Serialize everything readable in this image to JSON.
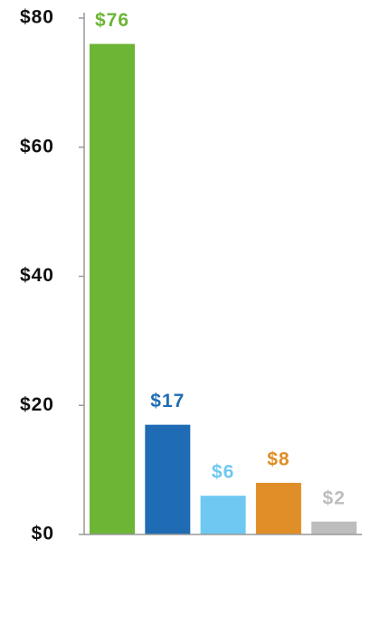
{
  "chart_data": {
    "type": "bar",
    "categories": [
      null,
      null,
      null,
      null,
      null
    ],
    "values": [
      76,
      17,
      6,
      8,
      2
    ],
    "value_labels": [
      "$76",
      "$17",
      "$6",
      "$8",
      "$2"
    ],
    "colors": [
      "#6cb535",
      "#1f6cb4",
      "#6ec8f2",
      "#e08e27",
      "#bdbdbd"
    ],
    "ylim": [
      0,
      80
    ],
    "yticks": [
      {
        "value": 0,
        "label": "$0"
      },
      {
        "value": 20,
        "label": "$20"
      },
      {
        "value": 40,
        "label": "$40"
      },
      {
        "value": 60,
        "label": "$60"
      },
      {
        "value": 80,
        "label": "$80"
      }
    ],
    "grid": false
  }
}
